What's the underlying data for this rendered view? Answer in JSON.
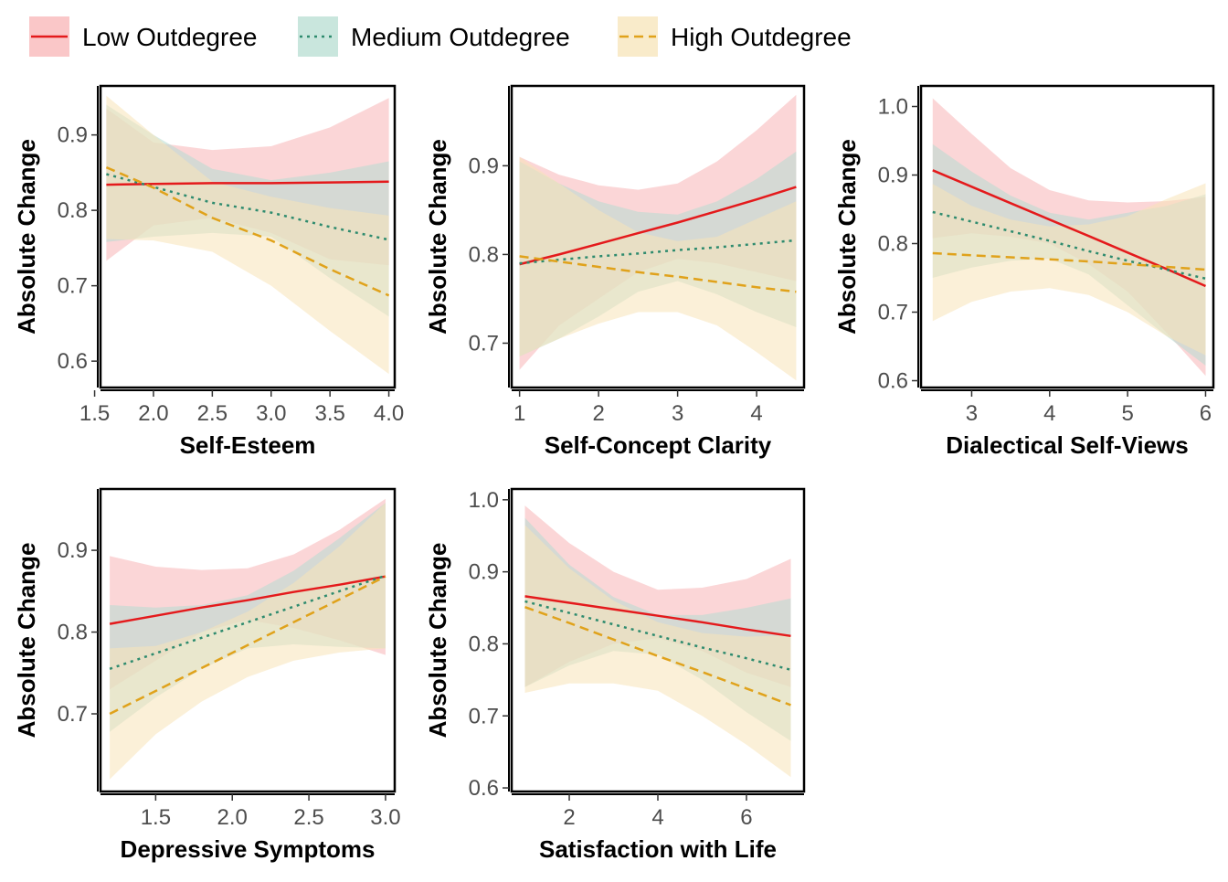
{
  "legend": {
    "items": [
      {
        "label": "Low Outdegree",
        "color": "#E41A1C",
        "fill": "#F8B4B6",
        "dash": "solid"
      },
      {
        "label": "Medium Outdegree",
        "color": "#2E8B6E",
        "fill": "#B7DDD2",
        "dash": "dotted"
      },
      {
        "label": "High Outdegree",
        "color": "#E0A21B",
        "fill": "#F7E4B8",
        "dash": "dashed"
      }
    ]
  },
  "chart_data": [
    {
      "type": "line",
      "xlabel": "Self-Esteem",
      "ylabel": "Absolute Change",
      "xlim": [
        1.55,
        4.05
      ],
      "ylim": [
        0.565,
        0.965
      ],
      "xticks": [
        {
          "v": 1.5,
          "label": "1.5"
        },
        {
          "v": 2.0,
          "label": "2.0"
        },
        {
          "v": 2.5,
          "label": "2.5"
        },
        {
          "v": 3.0,
          "label": "3.0"
        },
        {
          "v": 3.5,
          "label": "3.5"
        },
        {
          "v": 4.0,
          "label": "4.0"
        }
      ],
      "yticks": [
        {
          "v": 0.6,
          "label": "0.6"
        },
        {
          "v": 0.7,
          "label": "0.7"
        },
        {
          "v": 0.8,
          "label": "0.8"
        },
        {
          "v": 0.9,
          "label": "0.9"
        }
      ],
      "series": [
        {
          "name": "Low Outdegree",
          "x": [
            1.6,
            2.0,
            2.5,
            3.0,
            3.5,
            4.0
          ],
          "y": [
            0.834,
            0.835,
            0.836,
            0.836,
            0.837,
            0.838
          ],
          "lower": [
            0.733,
            0.78,
            0.79,
            0.77,
            0.735,
            0.727
          ],
          "upper": [
            0.935,
            0.89,
            0.88,
            0.885,
            0.91,
            0.949
          ]
        },
        {
          "name": "Medium Outdegree",
          "x": [
            1.6,
            2.0,
            2.5,
            3.0,
            3.5,
            4.0
          ],
          "y": [
            0.848,
            0.831,
            0.81,
            0.797,
            0.778,
            0.761
          ],
          "lower": [
            0.758,
            0.765,
            0.77,
            0.765,
            0.71,
            0.659
          ],
          "upper": [
            0.94,
            0.9,
            0.855,
            0.84,
            0.85,
            0.865
          ]
        },
        {
          "name": "High Outdegree",
          "x": [
            1.6,
            2.0,
            2.5,
            3.0,
            3.5,
            4.0
          ],
          "y": [
            0.857,
            0.83,
            0.79,
            0.76,
            0.722,
            0.687
          ],
          "lower": [
            0.762,
            0.76,
            0.745,
            0.7,
            0.64,
            0.583
          ],
          "upper": [
            0.952,
            0.9,
            0.838,
            0.818,
            0.803,
            0.793
          ]
        }
      ]
    },
    {
      "type": "line",
      "xlabel": "Self-Concept Clarity",
      "ylabel": "Absolute Change",
      "xlim": [
        0.9,
        4.6
      ],
      "ylim": [
        0.65,
        0.99
      ],
      "xticks": [
        {
          "v": 1,
          "label": "1"
        },
        {
          "v": 2,
          "label": "2"
        },
        {
          "v": 3,
          "label": "3"
        },
        {
          "v": 4,
          "label": "4"
        }
      ],
      "yticks": [
        {
          "v": 0.7,
          "label": "0.7"
        },
        {
          "v": 0.8,
          "label": "0.8"
        },
        {
          "v": 0.9,
          "label": "0.9"
        }
      ],
      "series": [
        {
          "name": "Low Outdegree",
          "x": [
            1,
            1.5,
            2,
            2.5,
            3,
            3.5,
            4,
            4.5
          ],
          "y": [
            0.789,
            0.8,
            0.812,
            0.824,
            0.836,
            0.849,
            0.862,
            0.876
          ],
          "lower": [
            0.67,
            0.72,
            0.75,
            0.78,
            0.795,
            0.79,
            0.78,
            0.77
          ],
          "upper": [
            0.91,
            0.89,
            0.878,
            0.873,
            0.88,
            0.905,
            0.94,
            0.98
          ]
        },
        {
          "name": "Medium Outdegree",
          "x": [
            1,
            1.5,
            2,
            2.5,
            3,
            3.5,
            4,
            4.5
          ],
          "y": [
            0.79,
            0.794,
            0.798,
            0.801,
            0.805,
            0.808,
            0.812,
            0.816
          ],
          "lower": [
            0.685,
            0.705,
            0.73,
            0.758,
            0.77,
            0.755,
            0.735,
            0.718
          ],
          "upper": [
            0.905,
            0.88,
            0.86,
            0.848,
            0.845,
            0.86,
            0.885,
            0.916
          ]
        },
        {
          "name": "High Outdegree",
          "x": [
            1,
            1.5,
            2,
            2.5,
            3,
            3.5,
            4,
            4.5
          ],
          "y": [
            0.798,
            0.792,
            0.786,
            0.78,
            0.775,
            0.769,
            0.763,
            0.758
          ],
          "lower": [
            0.685,
            0.705,
            0.722,
            0.735,
            0.735,
            0.72,
            0.69,
            0.658
          ],
          "upper": [
            0.91,
            0.88,
            0.85,
            0.825,
            0.815,
            0.82,
            0.84,
            0.86
          ]
        }
      ]
    },
    {
      "type": "line",
      "xlabel": "Dialectical Self-Views",
      "ylabel": "Absolute Change",
      "xlim": [
        2.35,
        6.1
      ],
      "ylim": [
        0.59,
        1.03
      ],
      "xticks": [
        {
          "v": 3,
          "label": "3"
        },
        {
          "v": 4,
          "label": "4"
        },
        {
          "v": 5,
          "label": "5"
        },
        {
          "v": 6,
          "label": "6"
        }
      ],
      "yticks": [
        {
          "v": 0.6,
          "label": "0.6"
        },
        {
          "v": 0.7,
          "label": "0.7"
        },
        {
          "v": 0.8,
          "label": "0.8"
        },
        {
          "v": 0.9,
          "label": "0.9"
        },
        {
          "v": 1.0,
          "label": "1.0"
        }
      ],
      "series": [
        {
          "name": "Low Outdegree",
          "x": [
            2.5,
            3,
            3.5,
            4,
            4.5,
            5,
            5.5,
            6
          ],
          "y": [
            0.907,
            0.883,
            0.859,
            0.835,
            0.811,
            0.787,
            0.763,
            0.738
          ],
          "lower": [
            0.808,
            0.815,
            0.81,
            0.8,
            0.77,
            0.73,
            0.67,
            0.607
          ],
          "upper": [
            1.012,
            0.96,
            0.91,
            0.878,
            0.863,
            0.86,
            0.862,
            0.868
          ]
        },
        {
          "name": "Medium Outdegree",
          "x": [
            2.5,
            3,
            3.5,
            4,
            4.5,
            5,
            5.5,
            6
          ],
          "y": [
            0.846,
            0.832,
            0.818,
            0.804,
            0.789,
            0.775,
            0.762,
            0.749
          ],
          "lower": [
            0.75,
            0.765,
            0.775,
            0.778,
            0.755,
            0.71,
            0.665,
            0.622
          ],
          "upper": [
            0.945,
            0.905,
            0.87,
            0.845,
            0.835,
            0.845,
            0.855,
            0.872
          ]
        },
        {
          "name": "High Outdegree",
          "x": [
            2.5,
            3,
            3.5,
            4,
            4.5,
            5,
            5.5,
            6
          ],
          "y": [
            0.786,
            0.783,
            0.78,
            0.777,
            0.774,
            0.77,
            0.766,
            0.762
          ],
          "lower": [
            0.687,
            0.715,
            0.73,
            0.735,
            0.725,
            0.7,
            0.665,
            0.637
          ],
          "upper": [
            0.887,
            0.855,
            0.835,
            0.825,
            0.828,
            0.84,
            0.865,
            0.888
          ]
        }
      ]
    },
    {
      "type": "line",
      "xlabel": "Depressive Symptoms",
      "ylabel": "Absolute Change",
      "xlim": [
        1.14,
        3.06
      ],
      "ylim": [
        0.605,
        0.975
      ],
      "xticks": [
        {
          "v": 1.5,
          "label": "1.5"
        },
        {
          "v": 2.0,
          "label": "2.0"
        },
        {
          "v": 2.5,
          "label": "2.5"
        },
        {
          "v": 3.0,
          "label": "3.0"
        }
      ],
      "yticks": [
        {
          "v": 0.7,
          "label": "0.7"
        },
        {
          "v": 0.8,
          "label": "0.8"
        },
        {
          "v": 0.9,
          "label": "0.9"
        }
      ],
      "series": [
        {
          "name": "Low Outdegree",
          "x": [
            1.2,
            1.5,
            1.8,
            2.1,
            2.4,
            2.7,
            3.0
          ],
          "y": [
            0.81,
            0.82,
            0.83,
            0.839,
            0.849,
            0.858,
            0.868
          ],
          "lower": [
            0.73,
            0.765,
            0.8,
            0.815,
            0.805,
            0.79,
            0.772
          ],
          "upper": [
            0.893,
            0.88,
            0.876,
            0.878,
            0.895,
            0.925,
            0.963
          ]
        },
        {
          "name": "Medium Outdegree",
          "x": [
            1.2,
            1.5,
            1.8,
            2.1,
            2.4,
            2.7,
            3.0
          ],
          "y": [
            0.755,
            0.774,
            0.793,
            0.812,
            0.831,
            0.85,
            0.869
          ],
          "lower": [
            0.678,
            0.72,
            0.755,
            0.78,
            0.785,
            0.782,
            0.78
          ],
          "upper": [
            0.833,
            0.83,
            0.833,
            0.845,
            0.875,
            0.915,
            0.958
          ]
        },
        {
          "name": "High Outdegree",
          "x": [
            1.2,
            1.5,
            1.8,
            2.1,
            2.4,
            2.7,
            3.0
          ],
          "y": [
            0.7,
            0.728,
            0.756,
            0.784,
            0.812,
            0.84,
            0.868
          ],
          "lower": [
            0.62,
            0.675,
            0.715,
            0.745,
            0.765,
            0.775,
            0.78
          ],
          "upper": [
            0.78,
            0.783,
            0.8,
            0.825,
            0.86,
            0.905,
            0.958
          ]
        }
      ]
    },
    {
      "type": "line",
      "xlabel": "Satisfaction with Life",
      "ylabel": "Absolute Change",
      "xlim": [
        0.7,
        7.3
      ],
      "ylim": [
        0.595,
        1.015
      ],
      "xticks": [
        {
          "v": 2,
          "label": "2"
        },
        {
          "v": 4,
          "label": "4"
        },
        {
          "v": 6,
          "label": "6"
        }
      ],
      "yticks": [
        {
          "v": 0.6,
          "label": "0.6"
        },
        {
          "v": 0.7,
          "label": "0.7"
        },
        {
          "v": 0.8,
          "label": "0.8"
        },
        {
          "v": 0.9,
          "label": "0.9"
        },
        {
          "v": 1.0,
          "label": "1.0"
        }
      ],
      "series": [
        {
          "name": "Low Outdegree",
          "x": [
            1,
            2,
            3,
            4,
            5,
            6,
            7
          ],
          "y": [
            0.866,
            0.857,
            0.848,
            0.839,
            0.83,
            0.82,
            0.811
          ],
          "lower": [
            0.74,
            0.775,
            0.8,
            0.808,
            0.79,
            0.76,
            0.74
          ],
          "upper": [
            0.992,
            0.94,
            0.9,
            0.875,
            0.878,
            0.89,
            0.918
          ]
        },
        {
          "name": "Medium Outdegree",
          "x": [
            1,
            2,
            3,
            4,
            5,
            6,
            7
          ],
          "y": [
            0.859,
            0.843,
            0.827,
            0.811,
            0.795,
            0.78,
            0.764
          ],
          "lower": [
            0.74,
            0.77,
            0.79,
            0.785,
            0.75,
            0.705,
            0.665
          ],
          "upper": [
            0.975,
            0.91,
            0.865,
            0.84,
            0.84,
            0.85,
            0.863
          ]
        },
        {
          "name": "High Outdegree",
          "x": [
            1,
            2,
            3,
            4,
            5,
            6,
            7
          ],
          "y": [
            0.851,
            0.829,
            0.806,
            0.783,
            0.761,
            0.738,
            0.715
          ],
          "lower": [
            0.732,
            0.745,
            0.745,
            0.735,
            0.7,
            0.66,
            0.615
          ],
          "upper": [
            0.965,
            0.905,
            0.86,
            0.83,
            0.815,
            0.81,
            0.812
          ]
        }
      ]
    }
  ]
}
